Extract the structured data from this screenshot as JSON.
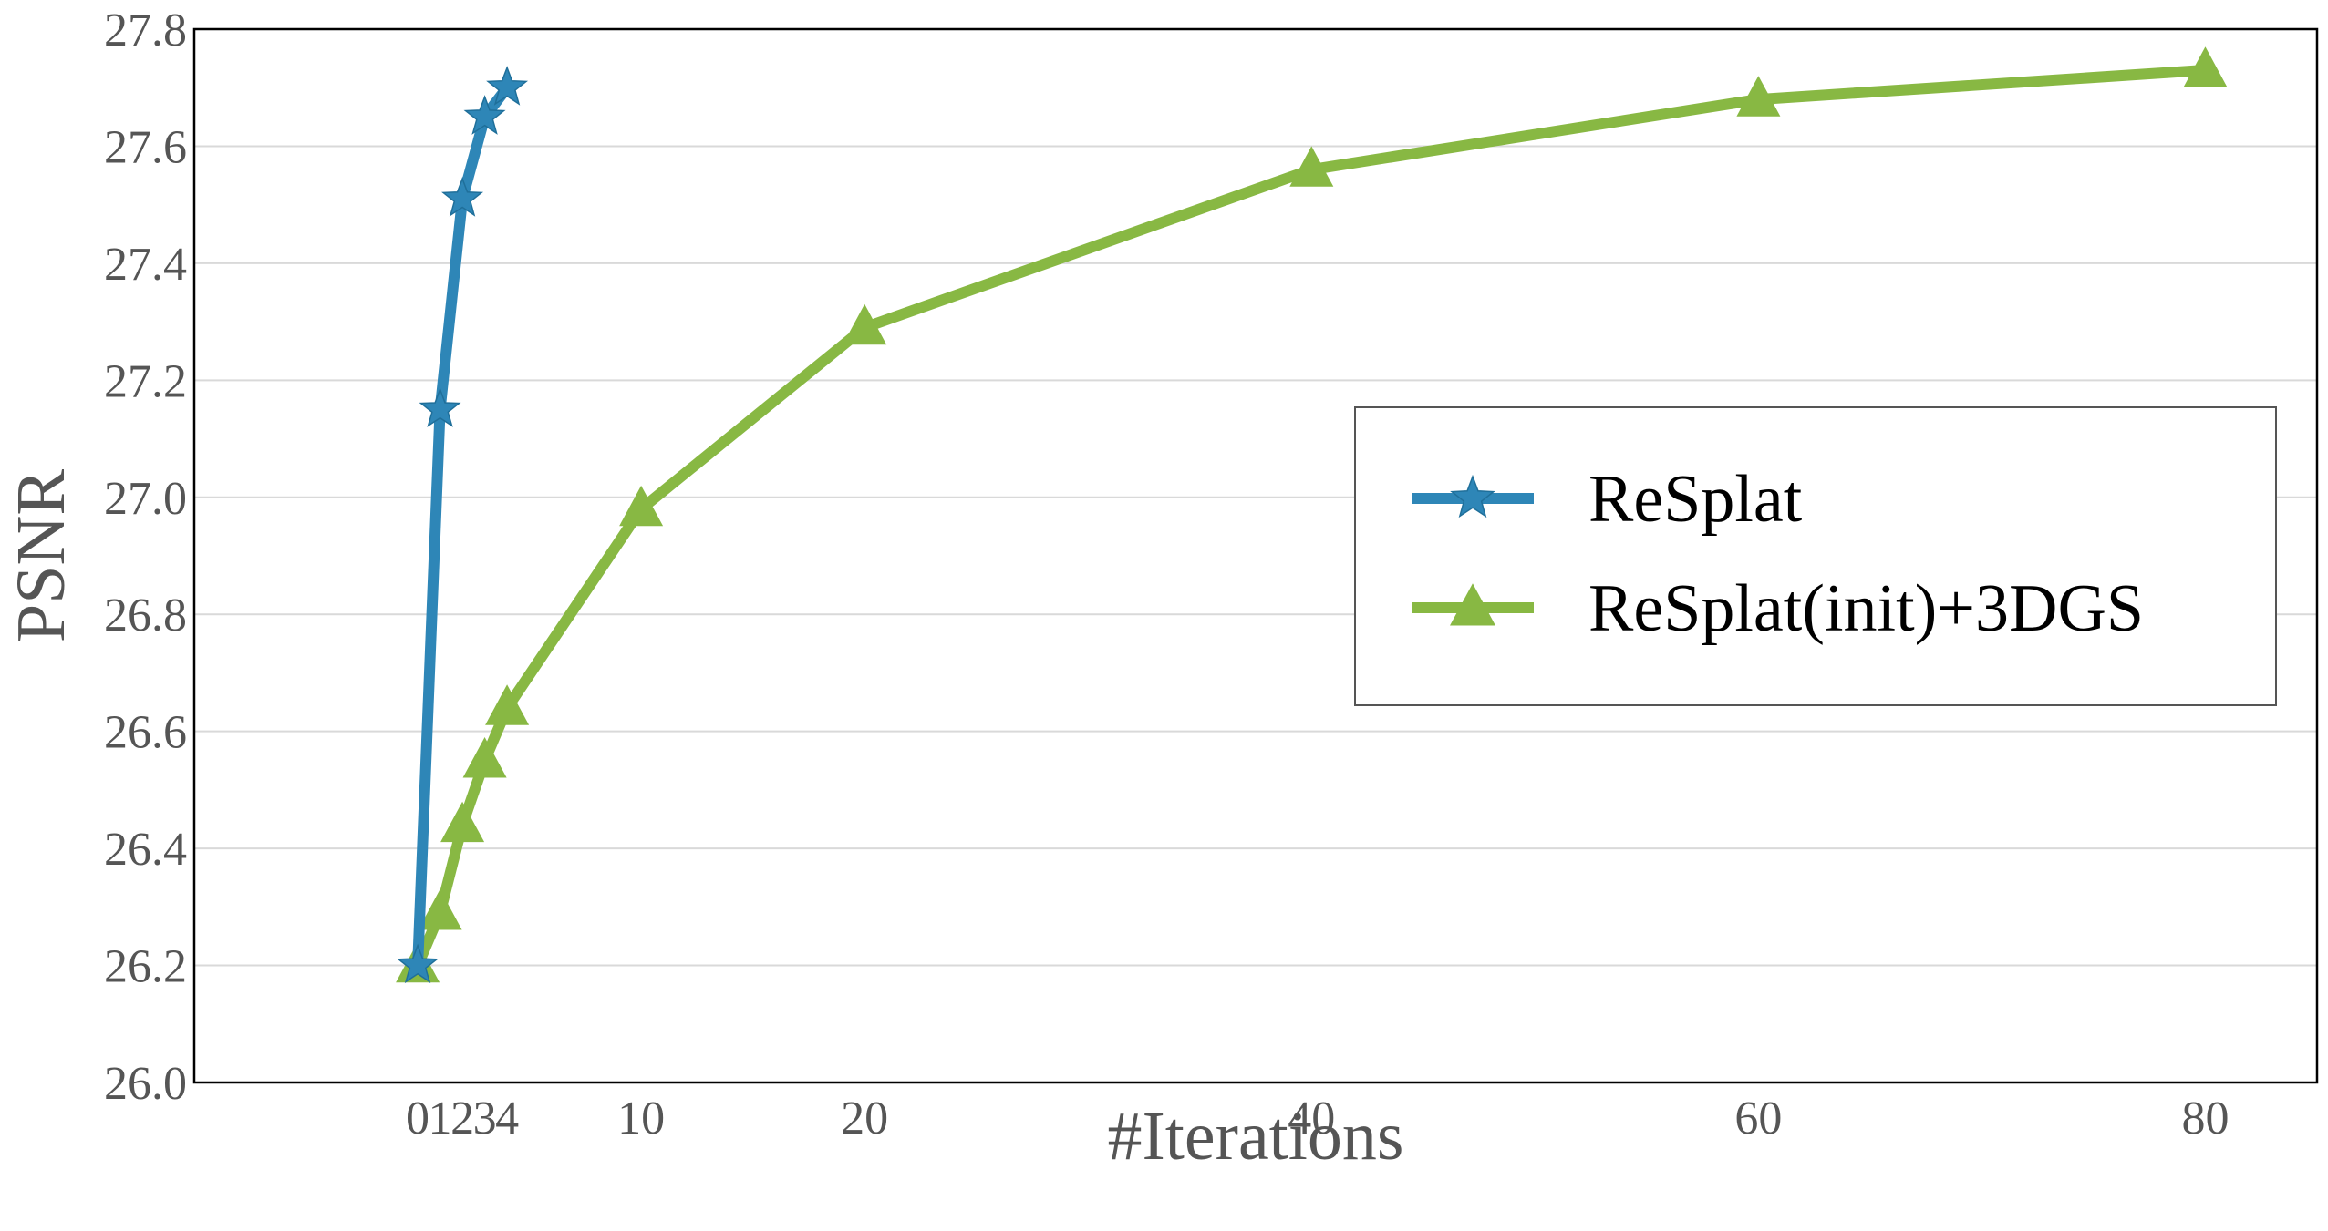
{
  "chart_data": {
    "type": "line",
    "title": "",
    "xlabel": "#Iterations",
    "ylabel": "PSNR",
    "xlim": [
      -10,
      85
    ],
    "ylim": [
      26.0,
      27.8
    ],
    "x_ticks": [
      0,
      1,
      2,
      3,
      4,
      10,
      20,
      40,
      60,
      80
    ],
    "x_tick_labels": [
      "0",
      "1",
      "2",
      "3",
      "4",
      "10",
      "20",
      "40",
      "60",
      "80"
    ],
    "y_ticks": [
      26.0,
      26.2,
      26.4,
      26.6,
      26.8,
      27.0,
      27.2,
      27.4,
      27.6,
      27.8
    ],
    "y_tick_labels": [
      "26.0",
      "26.2",
      "26.4",
      "26.6",
      "26.8",
      "27.0",
      "27.2",
      "27.4",
      "27.6",
      "27.8"
    ],
    "grid": "horizontal",
    "legend_position": "right",
    "series": [
      {
        "name": "ReSplat",
        "color": "#2e86b7",
        "marker": "star",
        "x": [
          0,
          1,
          2,
          3,
          4
        ],
        "y": [
          26.2,
          27.15,
          27.51,
          27.65,
          27.7
        ]
      },
      {
        "name": "ReSplat(init)+3DGS",
        "color": "#88b843",
        "marker": "triangle",
        "x": [
          0,
          1,
          2,
          3,
          4,
          10,
          20,
          40,
          60,
          80
        ],
        "y": [
          26.2,
          26.29,
          26.44,
          26.55,
          26.64,
          26.98,
          27.29,
          27.56,
          27.68,
          27.73
        ]
      }
    ]
  }
}
